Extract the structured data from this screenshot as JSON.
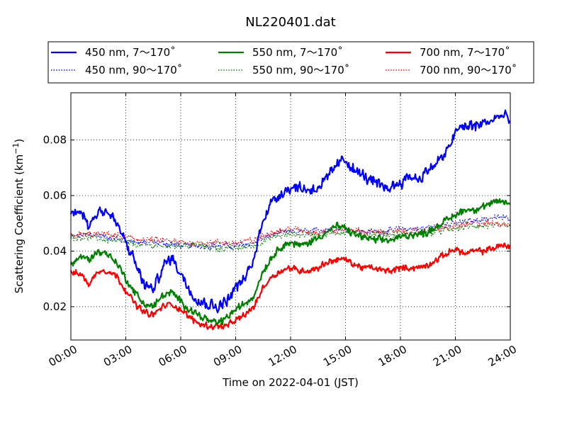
{
  "chart_data": {
    "type": "line",
    "title": "NL220401.dat",
    "xlabel": "Time on 2022-04-01 (JST)",
    "ylabel": "Scattering Coefficient (km",
    "ylabel_sup": "−1",
    "ylabel_close": ")",
    "xlim": [
      0,
      24
    ],
    "ylim": [
      0.008,
      0.097
    ],
    "x_ticks": [
      {
        "value": 0,
        "label": "00:00"
      },
      {
        "value": 3,
        "label": "03:00"
      },
      {
        "value": 6,
        "label": "06:00"
      },
      {
        "value": 9,
        "label": "09:00"
      },
      {
        "value": 12,
        "label": "12:00"
      },
      {
        "value": 15,
        "label": "15:00"
      },
      {
        "value": 18,
        "label": "18:00"
      },
      {
        "value": 21,
        "label": "21:00"
      },
      {
        "value": 24,
        "label": "24:00"
      }
    ],
    "y_ticks": [
      {
        "value": 0.02,
        "label": "0.02"
      },
      {
        "value": 0.04,
        "label": "0.04"
      },
      {
        "value": 0.06,
        "label": "0.06"
      },
      {
        "value": 0.08,
        "label": "0.08"
      }
    ],
    "grid": true,
    "legend_position": "top",
    "series": [
      {
        "name": "450 nm, 7～170˚",
        "color": "#0000ff",
        "style": "solid",
        "noise": 0.0022,
        "x": [
          0,
          0.5,
          1,
          1.5,
          2,
          2.5,
          3,
          3.5,
          4,
          4.5,
          5,
          5.5,
          6,
          6.5,
          7,
          7.5,
          8,
          8.5,
          9,
          9.5,
          10,
          10.5,
          11,
          11.5,
          12,
          12.5,
          13,
          13.5,
          14,
          14.5,
          15,
          15.5,
          16,
          16.5,
          17,
          17.5,
          18,
          18.5,
          19,
          19.5,
          20,
          20.5,
          21,
          21.5,
          22,
          22.5,
          23,
          23.5,
          24
        ],
        "y": [
          0.053,
          0.055,
          0.049,
          0.055,
          0.054,
          0.05,
          0.043,
          0.036,
          0.028,
          0.026,
          0.034,
          0.038,
          0.032,
          0.026,
          0.022,
          0.021,
          0.02,
          0.022,
          0.027,
          0.03,
          0.037,
          0.052,
          0.058,
          0.061,
          0.063,
          0.063,
          0.062,
          0.063,
          0.066,
          0.071,
          0.073,
          0.069,
          0.067,
          0.065,
          0.063,
          0.063,
          0.065,
          0.067,
          0.066,
          0.069,
          0.072,
          0.075,
          0.083,
          0.085,
          0.085,
          0.086,
          0.087,
          0.089,
          0.087
        ]
      },
      {
        "name": "450 nm, 90～170˚",
        "color": "#0000ff",
        "style": "dotted",
        "noise": 0.0012,
        "x": [
          0,
          1,
          2,
          3,
          4,
          5,
          6,
          7,
          8,
          9,
          10,
          11,
          12,
          13,
          14,
          15,
          16,
          17,
          18,
          19,
          20,
          21,
          22,
          23,
          24
        ],
        "y": [
          0.045,
          0.046,
          0.045,
          0.044,
          0.043,
          0.043,
          0.042,
          0.042,
          0.042,
          0.042,
          0.043,
          0.046,
          0.047,
          0.047,
          0.048,
          0.048,
          0.047,
          0.047,
          0.048,
          0.048,
          0.049,
          0.05,
          0.051,
          0.052,
          0.052
        ]
      },
      {
        "name": "550 nm, 7～170˚",
        "color": "#008000",
        "style": "solid",
        "noise": 0.0014,
        "x": [
          0,
          0.5,
          1,
          1.5,
          2,
          2.5,
          3,
          3.5,
          4,
          4.5,
          5,
          5.5,
          6,
          6.5,
          7,
          7.5,
          8,
          8.5,
          9,
          9.5,
          10,
          10.5,
          11,
          11.5,
          12,
          12.5,
          13,
          13.5,
          14,
          14.5,
          15,
          15.5,
          16,
          16.5,
          17,
          17.5,
          18,
          18.5,
          19,
          19.5,
          20,
          20.5,
          21,
          21.5,
          22,
          22.5,
          23,
          23.5,
          24
        ],
        "y": [
          0.035,
          0.038,
          0.037,
          0.04,
          0.039,
          0.036,
          0.03,
          0.025,
          0.021,
          0.02,
          0.024,
          0.025,
          0.022,
          0.019,
          0.017,
          0.015,
          0.014,
          0.016,
          0.019,
          0.021,
          0.024,
          0.033,
          0.038,
          0.042,
          0.043,
          0.042,
          0.043,
          0.045,
          0.047,
          0.049,
          0.048,
          0.046,
          0.045,
          0.044,
          0.044,
          0.044,
          0.045,
          0.046,
          0.046,
          0.047,
          0.049,
          0.051,
          0.053,
          0.055,
          0.055,
          0.056,
          0.057,
          0.058,
          0.057
        ]
      },
      {
        "name": "550 nm, 90～170˚",
        "color": "#008000",
        "style": "dotted",
        "noise": 0.0012,
        "x": [
          0,
          1,
          2,
          3,
          4,
          5,
          6,
          7,
          8,
          9,
          10,
          11,
          12,
          13,
          14,
          15,
          16,
          17,
          18,
          19,
          20,
          21,
          22,
          23,
          24
        ],
        "y": [
          0.045,
          0.045,
          0.044,
          0.043,
          0.042,
          0.042,
          0.042,
          0.042,
          0.041,
          0.041,
          0.042,
          0.045,
          0.046,
          0.046,
          0.046,
          0.047,
          0.046,
          0.046,
          0.046,
          0.046,
          0.047,
          0.048,
          0.049,
          0.049,
          0.049
        ]
      },
      {
        "name": "700 nm, 7～170˚",
        "color": "#ff0000",
        "style": "solid",
        "noise": 0.0012,
        "x": [
          0,
          0.5,
          1,
          1.5,
          2,
          2.5,
          3,
          3.5,
          4,
          4.5,
          5,
          5.5,
          6,
          6.5,
          7,
          7.5,
          8,
          8.5,
          9,
          9.5,
          10,
          10.5,
          11,
          11.5,
          12,
          12.5,
          13,
          13.5,
          14,
          14.5,
          15,
          15.5,
          16,
          16.5,
          17,
          17.5,
          18,
          18.5,
          19,
          19.5,
          20,
          20.5,
          21,
          21.5,
          22,
          22.5,
          23,
          23.5,
          24
        ],
        "y": [
          0.032,
          0.032,
          0.028,
          0.033,
          0.033,
          0.031,
          0.026,
          0.021,
          0.018,
          0.017,
          0.02,
          0.021,
          0.019,
          0.016,
          0.014,
          0.013,
          0.013,
          0.013,
          0.015,
          0.017,
          0.02,
          0.027,
          0.031,
          0.033,
          0.034,
          0.033,
          0.033,
          0.034,
          0.036,
          0.037,
          0.037,
          0.035,
          0.034,
          0.034,
          0.033,
          0.033,
          0.034,
          0.034,
          0.034,
          0.035,
          0.037,
          0.039,
          0.041,
          0.039,
          0.04,
          0.04,
          0.041,
          0.042,
          0.042
        ]
      },
      {
        "name": "700 nm, 90～170˚",
        "color": "#ff0000",
        "style": "dotted",
        "noise": 0.0012,
        "x": [
          0,
          1,
          2,
          3,
          4,
          5,
          6,
          7,
          8,
          9,
          10,
          11,
          12,
          13,
          14,
          15,
          16,
          17,
          18,
          19,
          20,
          21,
          22,
          23,
          24
        ],
        "y": [
          0.046,
          0.046,
          0.046,
          0.045,
          0.044,
          0.044,
          0.043,
          0.043,
          0.043,
          0.043,
          0.044,
          0.047,
          0.048,
          0.047,
          0.047,
          0.048,
          0.047,
          0.047,
          0.047,
          0.047,
          0.048,
          0.049,
          0.05,
          0.05,
          0.05
        ]
      }
    ]
  }
}
